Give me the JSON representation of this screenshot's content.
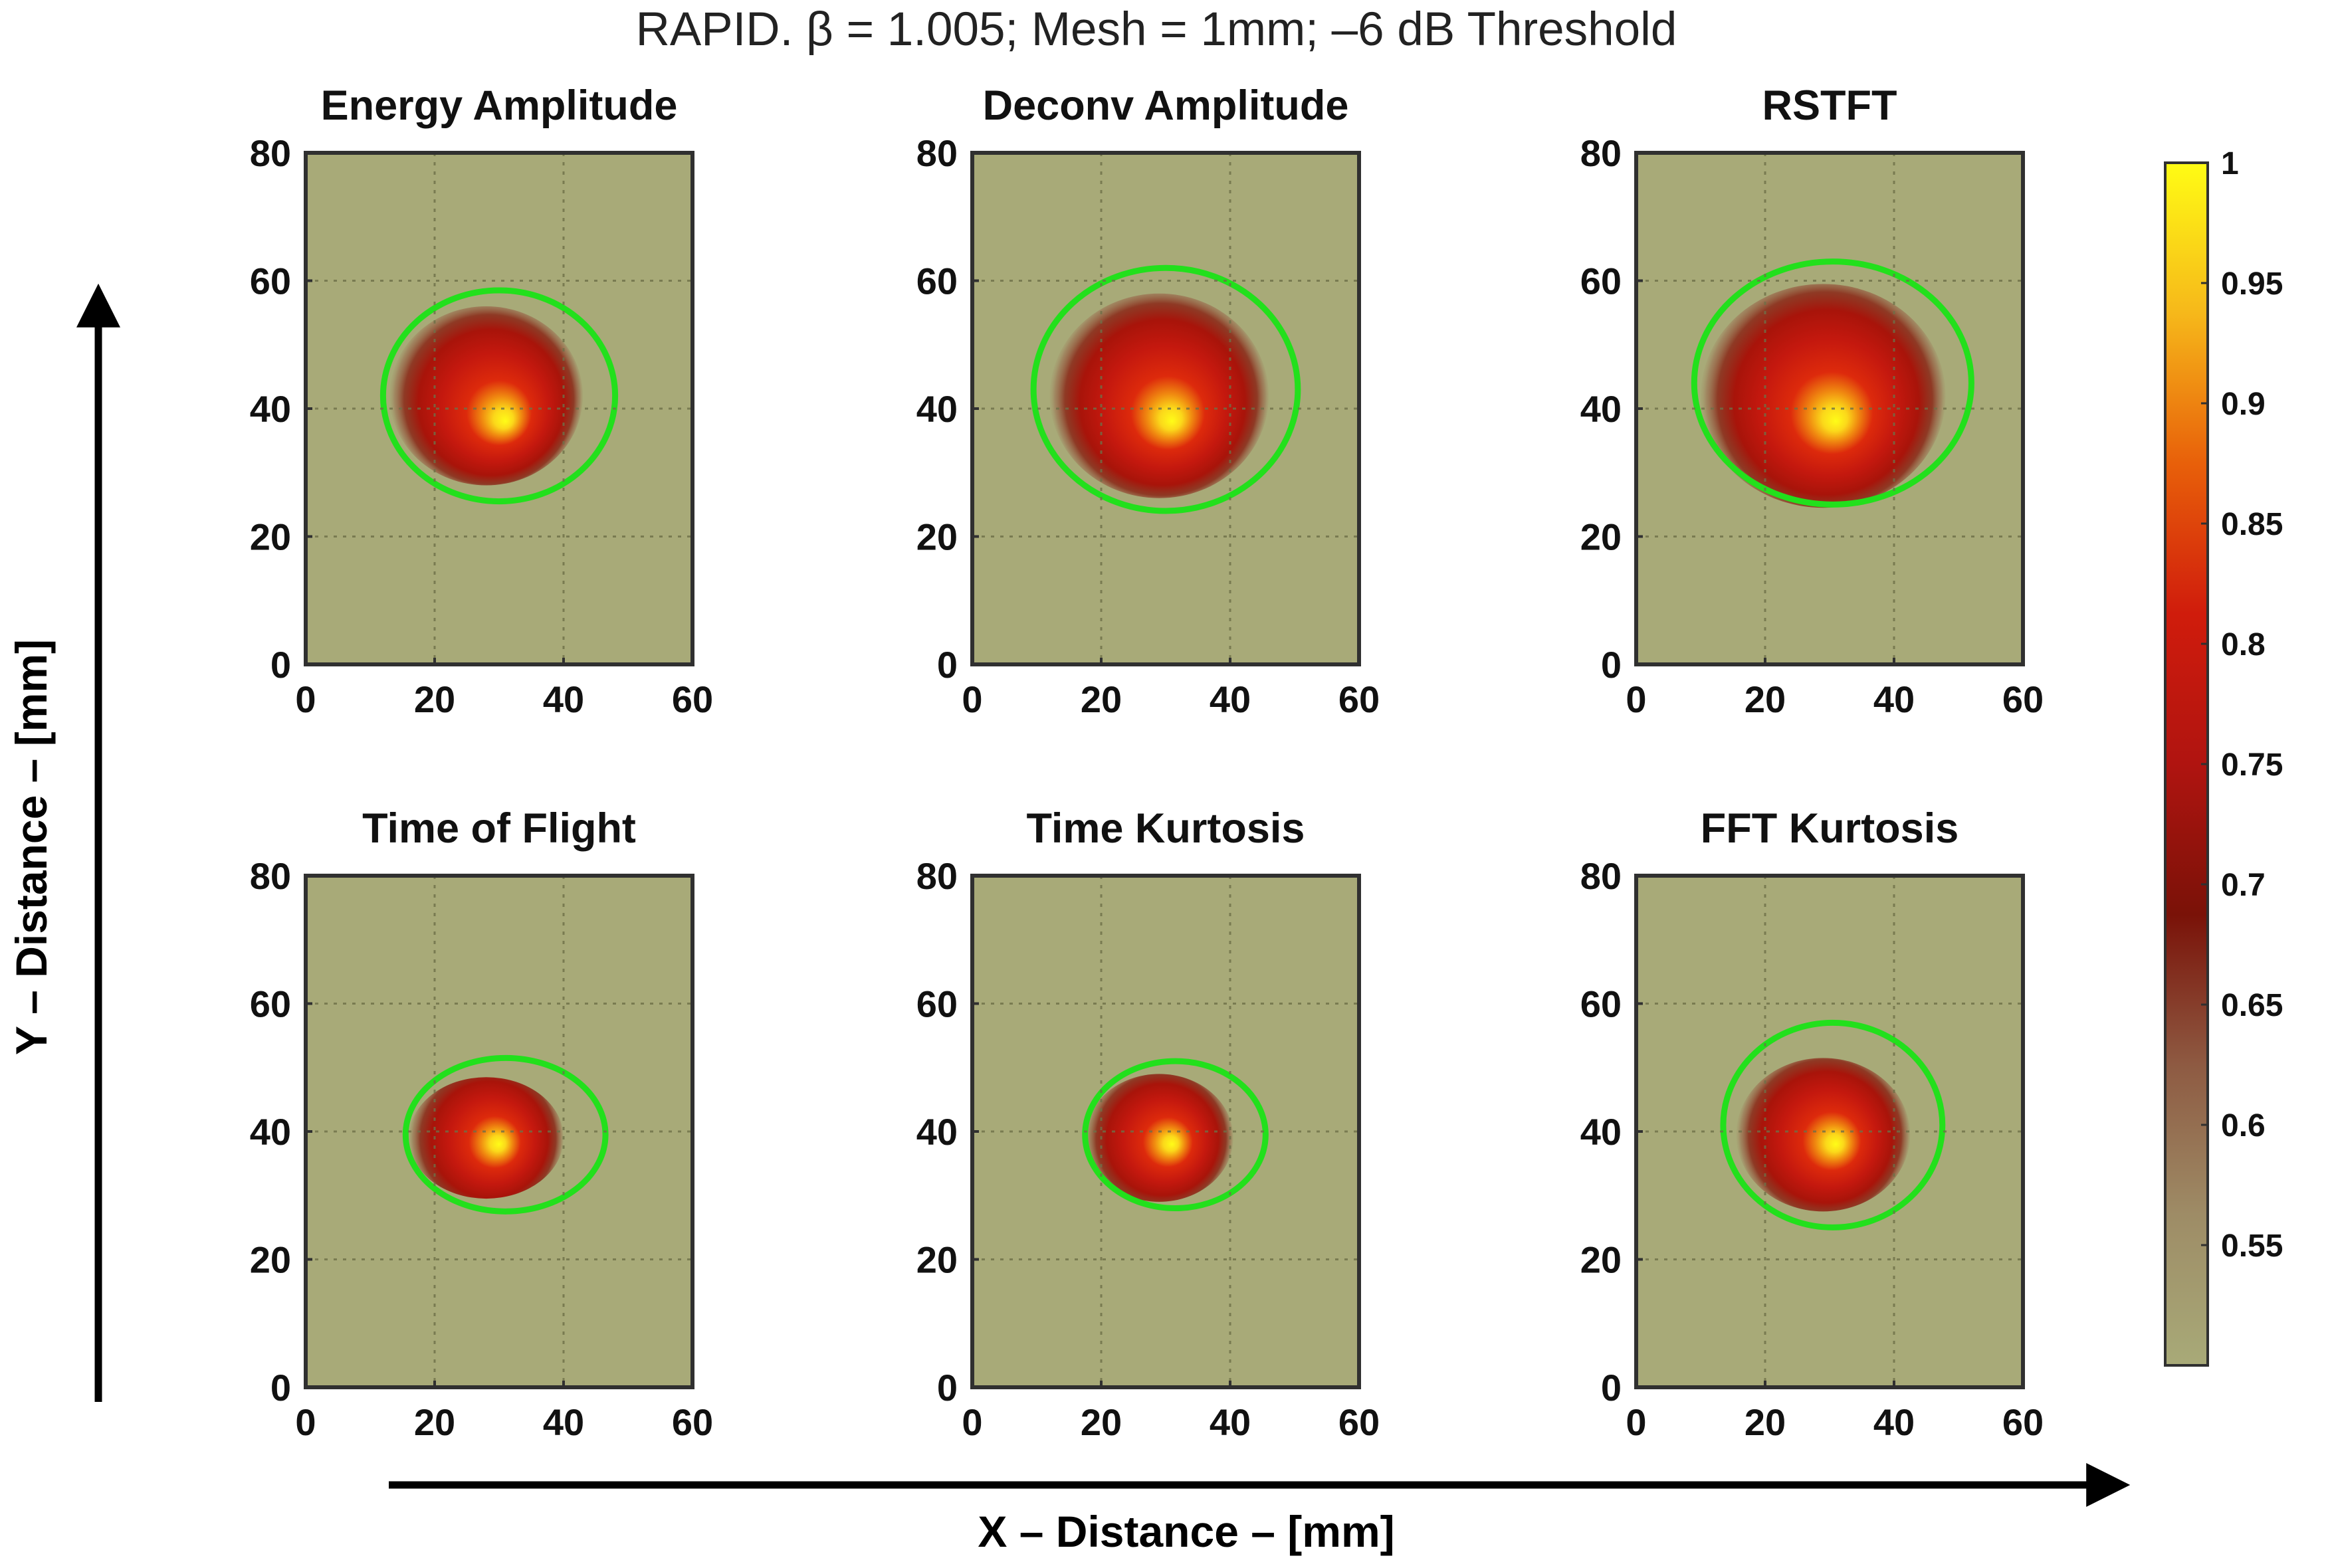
{
  "figure_title": "RAPID. β = 1.005; Mesh = 1mm; –6 dB Threshold",
  "x_axis_label": "X – Distance – [mm]",
  "y_axis_label": "Y – Distance – [mm]",
  "colors": {
    "background": "#a8aa78",
    "grid": "#6e7048",
    "ellipse": "#22e01c",
    "frame": "#303030",
    "arrow": "#000000",
    "colormap": [
      "#a8aa78",
      "#9e8c66",
      "#8e5a42",
      "#7a1208",
      "#b01410",
      "#d01c0c",
      "#e8600a",
      "#f6b81a",
      "#fffc14"
    ]
  },
  "chart_data": {
    "type": "heatmap",
    "title": "RAPID. β = 1.005; Mesh = 1mm; –6 dB Threshold",
    "xlabel": "X – Distance – [mm]",
    "ylabel": "Y – Distance – [mm]",
    "xlim": [
      0,
      60
    ],
    "ylim": [
      0,
      80
    ],
    "xticks": [
      "0",
      "20",
      "40",
      "60"
    ],
    "yticks": [
      "0",
      "20",
      "40",
      "60",
      "80"
    ],
    "grid": true,
    "colorbar": {
      "range": [
        0.5,
        1
      ],
      "ticks": [
        "0.55",
        "0.6",
        "0.65",
        "0.7",
        "0.75",
        "0.8",
        "0.85",
        "0.9",
        "0.95",
        "1"
      ]
    },
    "panels": [
      {
        "title": "Energy Amplitude",
        "peak": {
          "x": 31,
          "y": 38,
          "value": 1.0
        },
        "blob": {
          "cx": 28,
          "cy": 42,
          "rx": 15,
          "ry": 14
        },
        "ellipse": {
          "cx": 30,
          "cy": 42,
          "rx": 18,
          "ry": 16.5
        }
      },
      {
        "title": "Deconv Amplitude",
        "peak": {
          "x": 31,
          "y": 38,
          "value": 1.0
        },
        "blob": {
          "cx": 29,
          "cy": 42,
          "rx": 17,
          "ry": 16
        },
        "ellipse": {
          "cx": 30,
          "cy": 43,
          "rx": 20.5,
          "ry": 19
        }
      },
      {
        "title": "RSTFT",
        "peak": {
          "x": 31,
          "y": 38,
          "value": 1.0
        },
        "blob": {
          "cx": 29,
          "cy": 42,
          "rx": 19,
          "ry": 17.5
        },
        "ellipse": {
          "cx": 30.5,
          "cy": 44,
          "rx": 21.5,
          "ry": 19
        }
      },
      {
        "title": "Time of Flight",
        "peak": {
          "x": 30,
          "y": 38,
          "value": 1.0
        },
        "blob": {
          "cx": 28,
          "cy": 39,
          "rx": 12,
          "ry": 9.5
        },
        "ellipse": {
          "cx": 31,
          "cy": 39.5,
          "rx": 15.5,
          "ry": 12
        }
      },
      {
        "title": "Time Kurtosis",
        "peak": {
          "x": 31,
          "y": 38,
          "value": 1.0
        },
        "blob": {
          "cx": 29,
          "cy": 39,
          "rx": 11.5,
          "ry": 10
        },
        "ellipse": {
          "cx": 31.5,
          "cy": 39.5,
          "rx": 14,
          "ry": 11.5
        }
      },
      {
        "title": "FFT Kurtosis",
        "peak": {
          "x": 31,
          "y": 38,
          "value": 1.0
        },
        "blob": {
          "cx": 29,
          "cy": 39.5,
          "rx": 13.5,
          "ry": 12
        },
        "ellipse": {
          "cx": 30.5,
          "cy": 41,
          "rx": 17,
          "ry": 16
        }
      }
    ]
  }
}
